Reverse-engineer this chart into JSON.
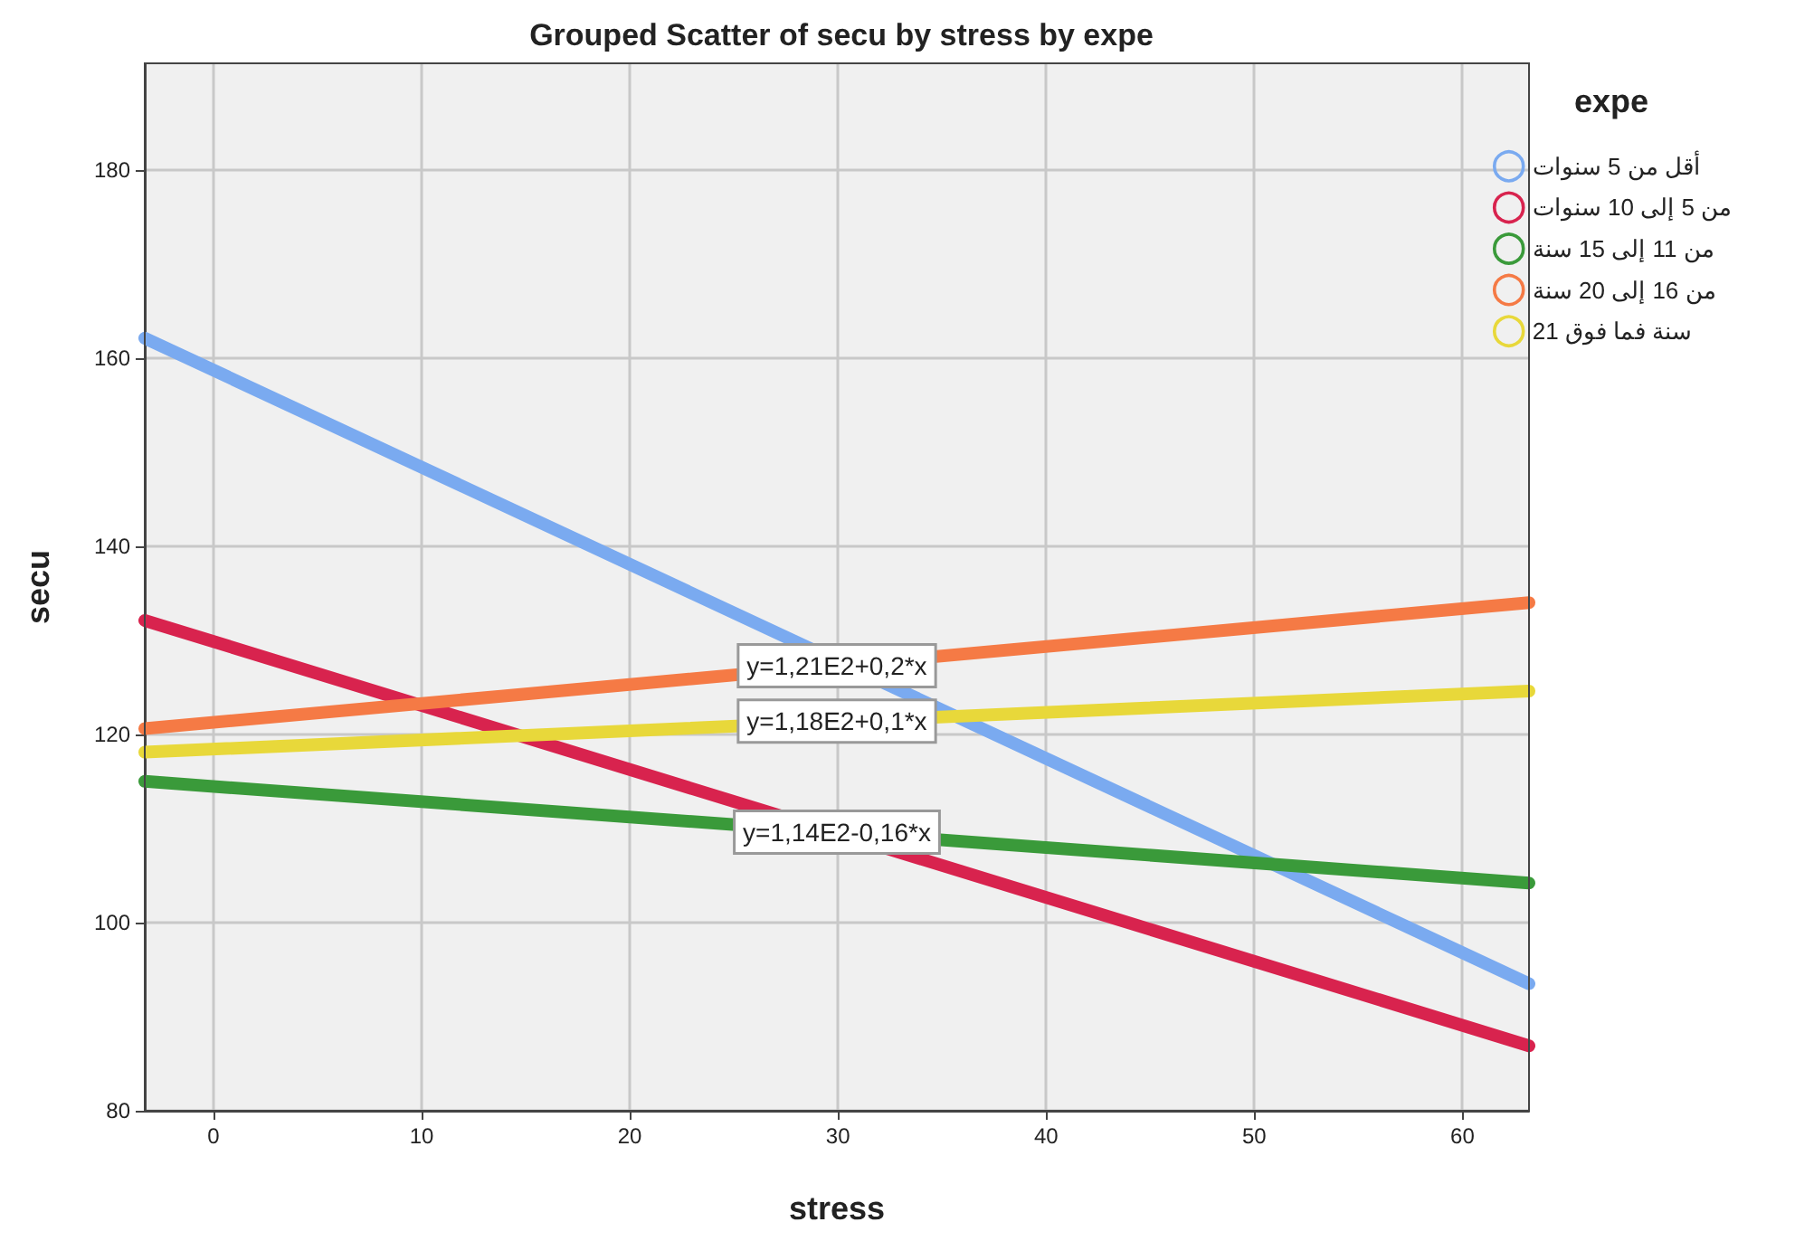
{
  "chart_data": {
    "type": "line",
    "title": "Grouped Scatter of secu by stress by expe",
    "xlabel": "stress",
    "ylabel": "secu",
    "legend_title": "expe",
    "legend": "top right",
    "grid": true,
    "line_style": "solid",
    "xlim": [
      -3.3,
      63.2
    ],
    "ylim": [
      80,
      191.3
    ],
    "xticks": [
      0,
      10,
      20,
      30,
      40,
      50,
      60
    ],
    "yticks": [
      80,
      100,
      120,
      140,
      160,
      180
    ],
    "x": [
      -3.3,
      63.2
    ],
    "series": [
      {
        "name": "أقل من 5 سنوات",
        "color": "#7aaaf0",
        "values": [
          162.1,
          93.5
        ]
      },
      {
        "name": "من 5 إلى 10 سنوات",
        "color": "#d8234e",
        "values": [
          132.1,
          86.9
        ]
      },
      {
        "name": "من 11 إلى 15 سنة",
        "color": "#3a9a3a",
        "values": [
          115.0,
          104.2
        ]
      },
      {
        "name": "من 16 إلى 20 سنة",
        "color": "#f57a45",
        "values": [
          120.6,
          134.0
        ]
      },
      {
        "name": "21 سنة فما فوق",
        "color": "#e8d83a",
        "values": [
          118.1,
          124.6
        ]
      }
    ],
    "annotations": [
      {
        "text": "y=1,21E2+0,2*x",
        "y": 127.3
      },
      {
        "text": "y=1,18E2+0,1*x",
        "y": 121.4
      },
      {
        "text": "y=1,14E2-0,16*x",
        "y": 109.6
      }
    ]
  }
}
